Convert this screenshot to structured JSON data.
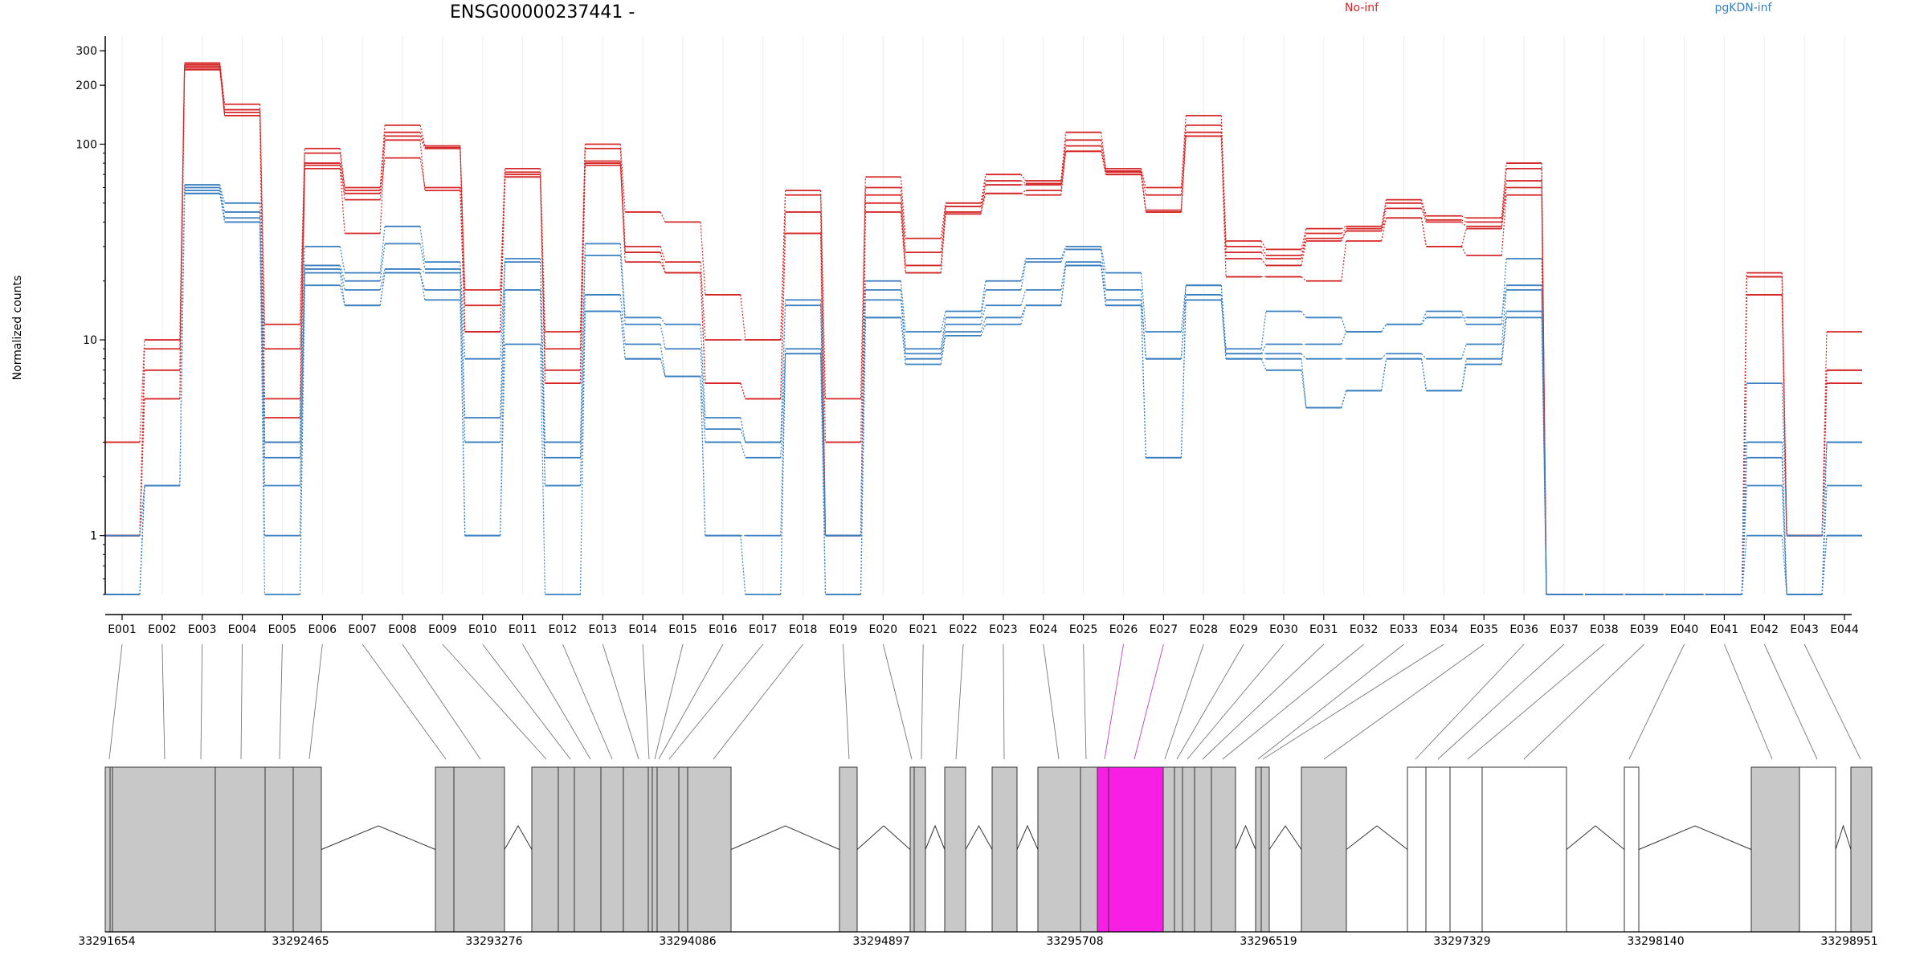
{
  "chart_data": {
    "type": "line",
    "title": "ENSG00000237441 -",
    "ylabel": "Normalized counts",
    "yscale": "log",
    "ylim": [
      0.5,
      340
    ],
    "yticks": [
      1,
      10,
      100,
      200,
      300
    ],
    "categories": [
      "E001",
      "E002",
      "E003",
      "E004",
      "E005",
      "E006",
      "E007",
      "E008",
      "E009",
      "E010",
      "E011",
      "E012",
      "E013",
      "E014",
      "E015",
      "E016",
      "E017",
      "E018",
      "E019",
      "E020",
      "E021",
      "E022",
      "E023",
      "E024",
      "E025",
      "E026",
      "E027",
      "E028",
      "E029",
      "E030",
      "E031",
      "E032",
      "E033",
      "E034",
      "E035",
      "E036",
      "E037",
      "E038",
      "E039",
      "E040",
      "E041",
      "E042",
      "E043",
      "E044"
    ],
    "legend": [
      {
        "name": "No-inf",
        "color": "#d62728"
      },
      {
        "name": "pgKDN-inf",
        "color": "#3a7fc0"
      }
    ],
    "series": [
      {
        "group": "No-inf",
        "color": "#d62728",
        "values": [
          3,
          10,
          260,
          160,
          12,
          95,
          60,
          125,
          98,
          18,
          75,
          11,
          100,
          45,
          40,
          17,
          10,
          58,
          5,
          68,
          33,
          50,
          70,
          65,
          115,
          75,
          60,
          140,
          32,
          29,
          37,
          38,
          52,
          43,
          42,
          80,
          0.5,
          0.5,
          0.5,
          0.5,
          0.5,
          22,
          1,
          11
        ]
      },
      {
        "group": "No-inf",
        "color": "#d62728",
        "values": [
          1,
          9,
          255,
          150,
          9,
          90,
          58,
          115,
          96,
          15,
          72,
          9,
          95,
          30,
          25,
          10,
          10,
          55,
          3,
          60,
          28,
          48,
          65,
          63,
          105,
          73,
          55,
          125,
          30,
          27,
          35,
          37,
          50,
          41,
          40,
          75,
          0.5,
          0.5,
          0.5,
          0.5,
          0.5,
          21,
          1,
          7
        ]
      },
      {
        "group": "No-inf",
        "color": "#d62728",
        "values": [
          1,
          7,
          250,
          145,
          5,
          80,
          56,
          110,
          95,
          11,
          70,
          7,
          82,
          28,
          22,
          6,
          5,
          45,
          1,
          55,
          24,
          45,
          62,
          62,
          98,
          72,
          46,
          115,
          28,
          26,
          33,
          36,
          47,
          40,
          38,
          65,
          0.5,
          0.5,
          0.5,
          0.5,
          0.5,
          21,
          1,
          7
        ]
      },
      {
        "group": "No-inf",
        "color": "#d62728",
        "values": [
          1,
          5,
          245,
          140,
          4,
          78,
          52,
          85,
          60,
          11,
          68,
          6,
          80,
          25,
          22,
          6,
          5,
          35,
          1,
          45,
          22,
          44,
          56,
          55,
          92,
          70,
          45,
          110,
          26,
          24,
          32,
          36,
          42,
          30,
          37,
          60,
          0.5,
          0.5,
          0.5,
          0.5,
          0.5,
          17,
          1,
          6
        ]
      },
      {
        "group": "No-inf",
        "color": "#d62728",
        "values": [
          1,
          5,
          240,
          140,
          3,
          75,
          35,
          105,
          58,
          11,
          68,
          6,
          78,
          28,
          22,
          6,
          5,
          35,
          1,
          50,
          22,
          48,
          56,
          58,
          92,
          70,
          45,
          110,
          21,
          21,
          20,
          32,
          42,
          30,
          27,
          55,
          0.5,
          0.5,
          0.5,
          0.5,
          0.5,
          17,
          1,
          6
        ]
      },
      {
        "group": "pgKDN-inf",
        "color": "#3a7fc0",
        "values": [
          1,
          1.8,
          62,
          50,
          3,
          30,
          22,
          38,
          25,
          8,
          26,
          3,
          31,
          13,
          12,
          4,
          3,
          16,
          1,
          20,
          11,
          14,
          20,
          26,
          30,
          22,
          11,
          19,
          9,
          14,
          13,
          11,
          12,
          14,
          12,
          26,
          0.5,
          0.5,
          0.5,
          0.5,
          0.5,
          6,
          1,
          3
        ]
      },
      {
        "group": "pgKDN-inf",
        "color": "#3a7fc0",
        "values": [
          0.5,
          1.8,
          60,
          45,
          2.5,
          24,
          20,
          31,
          23,
          4,
          25,
          2.5,
          27,
          12,
          9,
          3.5,
          3,
          15,
          1,
          18,
          9,
          13,
          18,
          25,
          29,
          18,
          8,
          19,
          8.5,
          9.5,
          9.5,
          11,
          12,
          13,
          13,
          19,
          0.5,
          0.5,
          0.5,
          0.5,
          0.5,
          3,
          0.5,
          3
        ]
      },
      {
        "group": "pgKDN-inf",
        "color": "#3a7fc0",
        "values": [
          0.5,
          1.8,
          58,
          42,
          1.8,
          23,
          18,
          23,
          22,
          3,
          18,
          1.8,
          17,
          9.5,
          6.5,
          3,
          2.5,
          9,
          1,
          16,
          8.5,
          12,
          15,
          18,
          25,
          16,
          8,
          17,
          8.5,
          8.5,
          8,
          8,
          8.5,
          8,
          9.5,
          18,
          0.5,
          0.5,
          0.5,
          0.5,
          0.5,
          2.5,
          0.5,
          1.8
        ]
      },
      {
        "group": "pgKDN-inf",
        "color": "#3a7fc0",
        "values": [
          0.5,
          1.8,
          56,
          40,
          1,
          22,
          15,
          22,
          18,
          1,
          18,
          1.8,
          14,
          8,
          6.5,
          1,
          1,
          8.5,
          0.5,
          13,
          8,
          11,
          13,
          15,
          24,
          15,
          2.5,
          16,
          8,
          8,
          4.5,
          5.5,
          8,
          5.5,
          8,
          14,
          0.5,
          0.5,
          0.5,
          0.5,
          0.5,
          1.8,
          0.5,
          1
        ]
      },
      {
        "group": "pgKDN-inf",
        "color": "#3a7fc0",
        "values": [
          0.5,
          1.8,
          56,
          40,
          0.5,
          19,
          15,
          22,
          16,
          1,
          9.5,
          0.5,
          14,
          8,
          6.5,
          1,
          0.5,
          8.5,
          0.5,
          13,
          7.5,
          10.5,
          12,
          15,
          24,
          15,
          2.5,
          16,
          8,
          7,
          4.5,
          5.5,
          8,
          5.5,
          7.5,
          13,
          0.5,
          0.5,
          0.5,
          0.5,
          0.5,
          1,
          0.5,
          1
        ]
      }
    ],
    "coords": {
      "ticks": [
        "33291654",
        "33292465",
        "33293276",
        "33294086",
        "33294897",
        "33295708",
        "33296519",
        "33297329",
        "33298140",
        "33298951"
      ],
      "highlight_exon": "E027"
    }
  }
}
